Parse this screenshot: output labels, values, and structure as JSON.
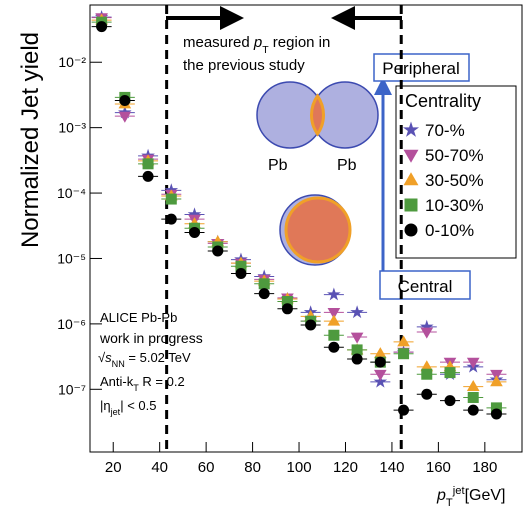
{
  "chart_data": {
    "type": "scatter",
    "y_label": "Normalized Jet yield",
    "x_label": [
      "p",
      "T",
      "jet",
      "[GeV]"
    ],
    "log_y": true,
    "xlim": [
      10,
      196
    ],
    "ylim": [
      1.1e-08,
      0.075
    ],
    "xticks": [
      20,
      40,
      60,
      80,
      100,
      120,
      140,
      160,
      180
    ],
    "yticks": [
      {
        "value": 1e-07,
        "label": "10⁻⁷"
      },
      {
        "value": 1e-06,
        "label": "10⁻⁶"
      },
      {
        "value": 1e-05,
        "label": "10⁻⁵"
      },
      {
        "value": 0.0001,
        "label": "10⁻⁴"
      },
      {
        "value": 0.001,
        "label": "10⁻³"
      },
      {
        "value": 0.01,
        "label": "10⁻²"
      }
    ],
    "vlines": [
      43,
      144
    ],
    "legend_title": "Centrality",
    "x": [
      15,
      25,
      35,
      45,
      55,
      65,
      75,
      85,
      95,
      105,
      115,
      125,
      135,
      145,
      155,
      165,
      175,
      185
    ],
    "series": [
      {
        "name": "70-%",
        "color": "#5a52b4",
        "marker": "star",
        "values": [
          0.049,
          0.0017,
          0.00037,
          0.00011,
          4.7e-05,
          1.8e-05,
          9.6e-06,
          5.3e-06,
          2.4e-06,
          1.5e-06,
          2.8e-06,
          1.5e-06,
          1.3e-07,
          3.7e-07,
          9e-07,
          1.7e-07,
          2.2e-07,
          1.4e-07
        ]
      },
      {
        "name": "50-70%",
        "color": "#b4509c",
        "marker": "triangle-down",
        "values": [
          0.048,
          0.0015,
          0.00033,
          9.6e-05,
          4e-05,
          1.7e-05,
          8.5e-06,
          4.8e-06,
          2.5e-06,
          1.1e-06,
          1.5e-06,
          6.3e-07,
          1.7e-07,
          3.7e-07,
          7.5e-07,
          2.6e-07,
          2.6e-07,
          1.7e-07
        ]
      },
      {
        "name": "30-50%",
        "color": "#f0a028",
        "marker": "triangle-up",
        "values": [
          0.044,
          0.0023,
          0.00031,
          9e-05,
          3.4e-05,
          1.8e-05,
          8.5e-06,
          4.5e-06,
          2.4e-06,
          1.3e-06,
          1.1e-06,
          4e-07,
          3.5e-07,
          5.3e-07,
          2.2e-07,
          2.2e-07,
          1.1e-07,
          1.3e-07
        ]
      },
      {
        "name": "10-30%",
        "color": "#4e9a3e",
        "marker": "square",
        "values": [
          0.041,
          0.0029,
          0.00028,
          8.1e-05,
          2.9e-05,
          1.5e-05,
          7.6e-06,
          4.1e-06,
          2.2e-06,
          1.1e-06,
          6.7e-07,
          4e-07,
          2.6e-07,
          3.5e-07,
          1.7e-07,
          1.8e-07,
          7.5e-08,
          5.2e-08
        ]
      },
      {
        "name": "0-10%",
        "color": "#000000",
        "marker": "circle",
        "values": [
          0.035,
          0.0026,
          0.00018,
          4e-05,
          2.5e-05,
          1.3e-05,
          5.9e-06,
          2.9e-06,
          1.7e-06,
          9.6e-07,
          4.4e-07,
          2.9e-07,
          2.6e-07,
          4.8e-08,
          8.4e-08,
          6.7e-08,
          4.8e-08,
          4.2e-08
        ]
      }
    ],
    "annotations": {
      "region_note": [
        "measured ",
        "p",
        "T",
        " region in",
        "the previous study"
      ],
      "peripheral": "Peripheral",
      "central": "Central",
      "nucleus_left": "Pb",
      "nucleus_right": "Pb",
      "experiment": "ALICE Pb-Pb",
      "status": "work in progress",
      "energy": [
        "√s",
        "NN",
        " = 5.02 TeV"
      ],
      "algorithm": [
        "Anti-k",
        "T",
        "  R = 0.2"
      ],
      "eta": [
        "|η",
        "jet",
        "| < 0.5"
      ]
    }
  }
}
